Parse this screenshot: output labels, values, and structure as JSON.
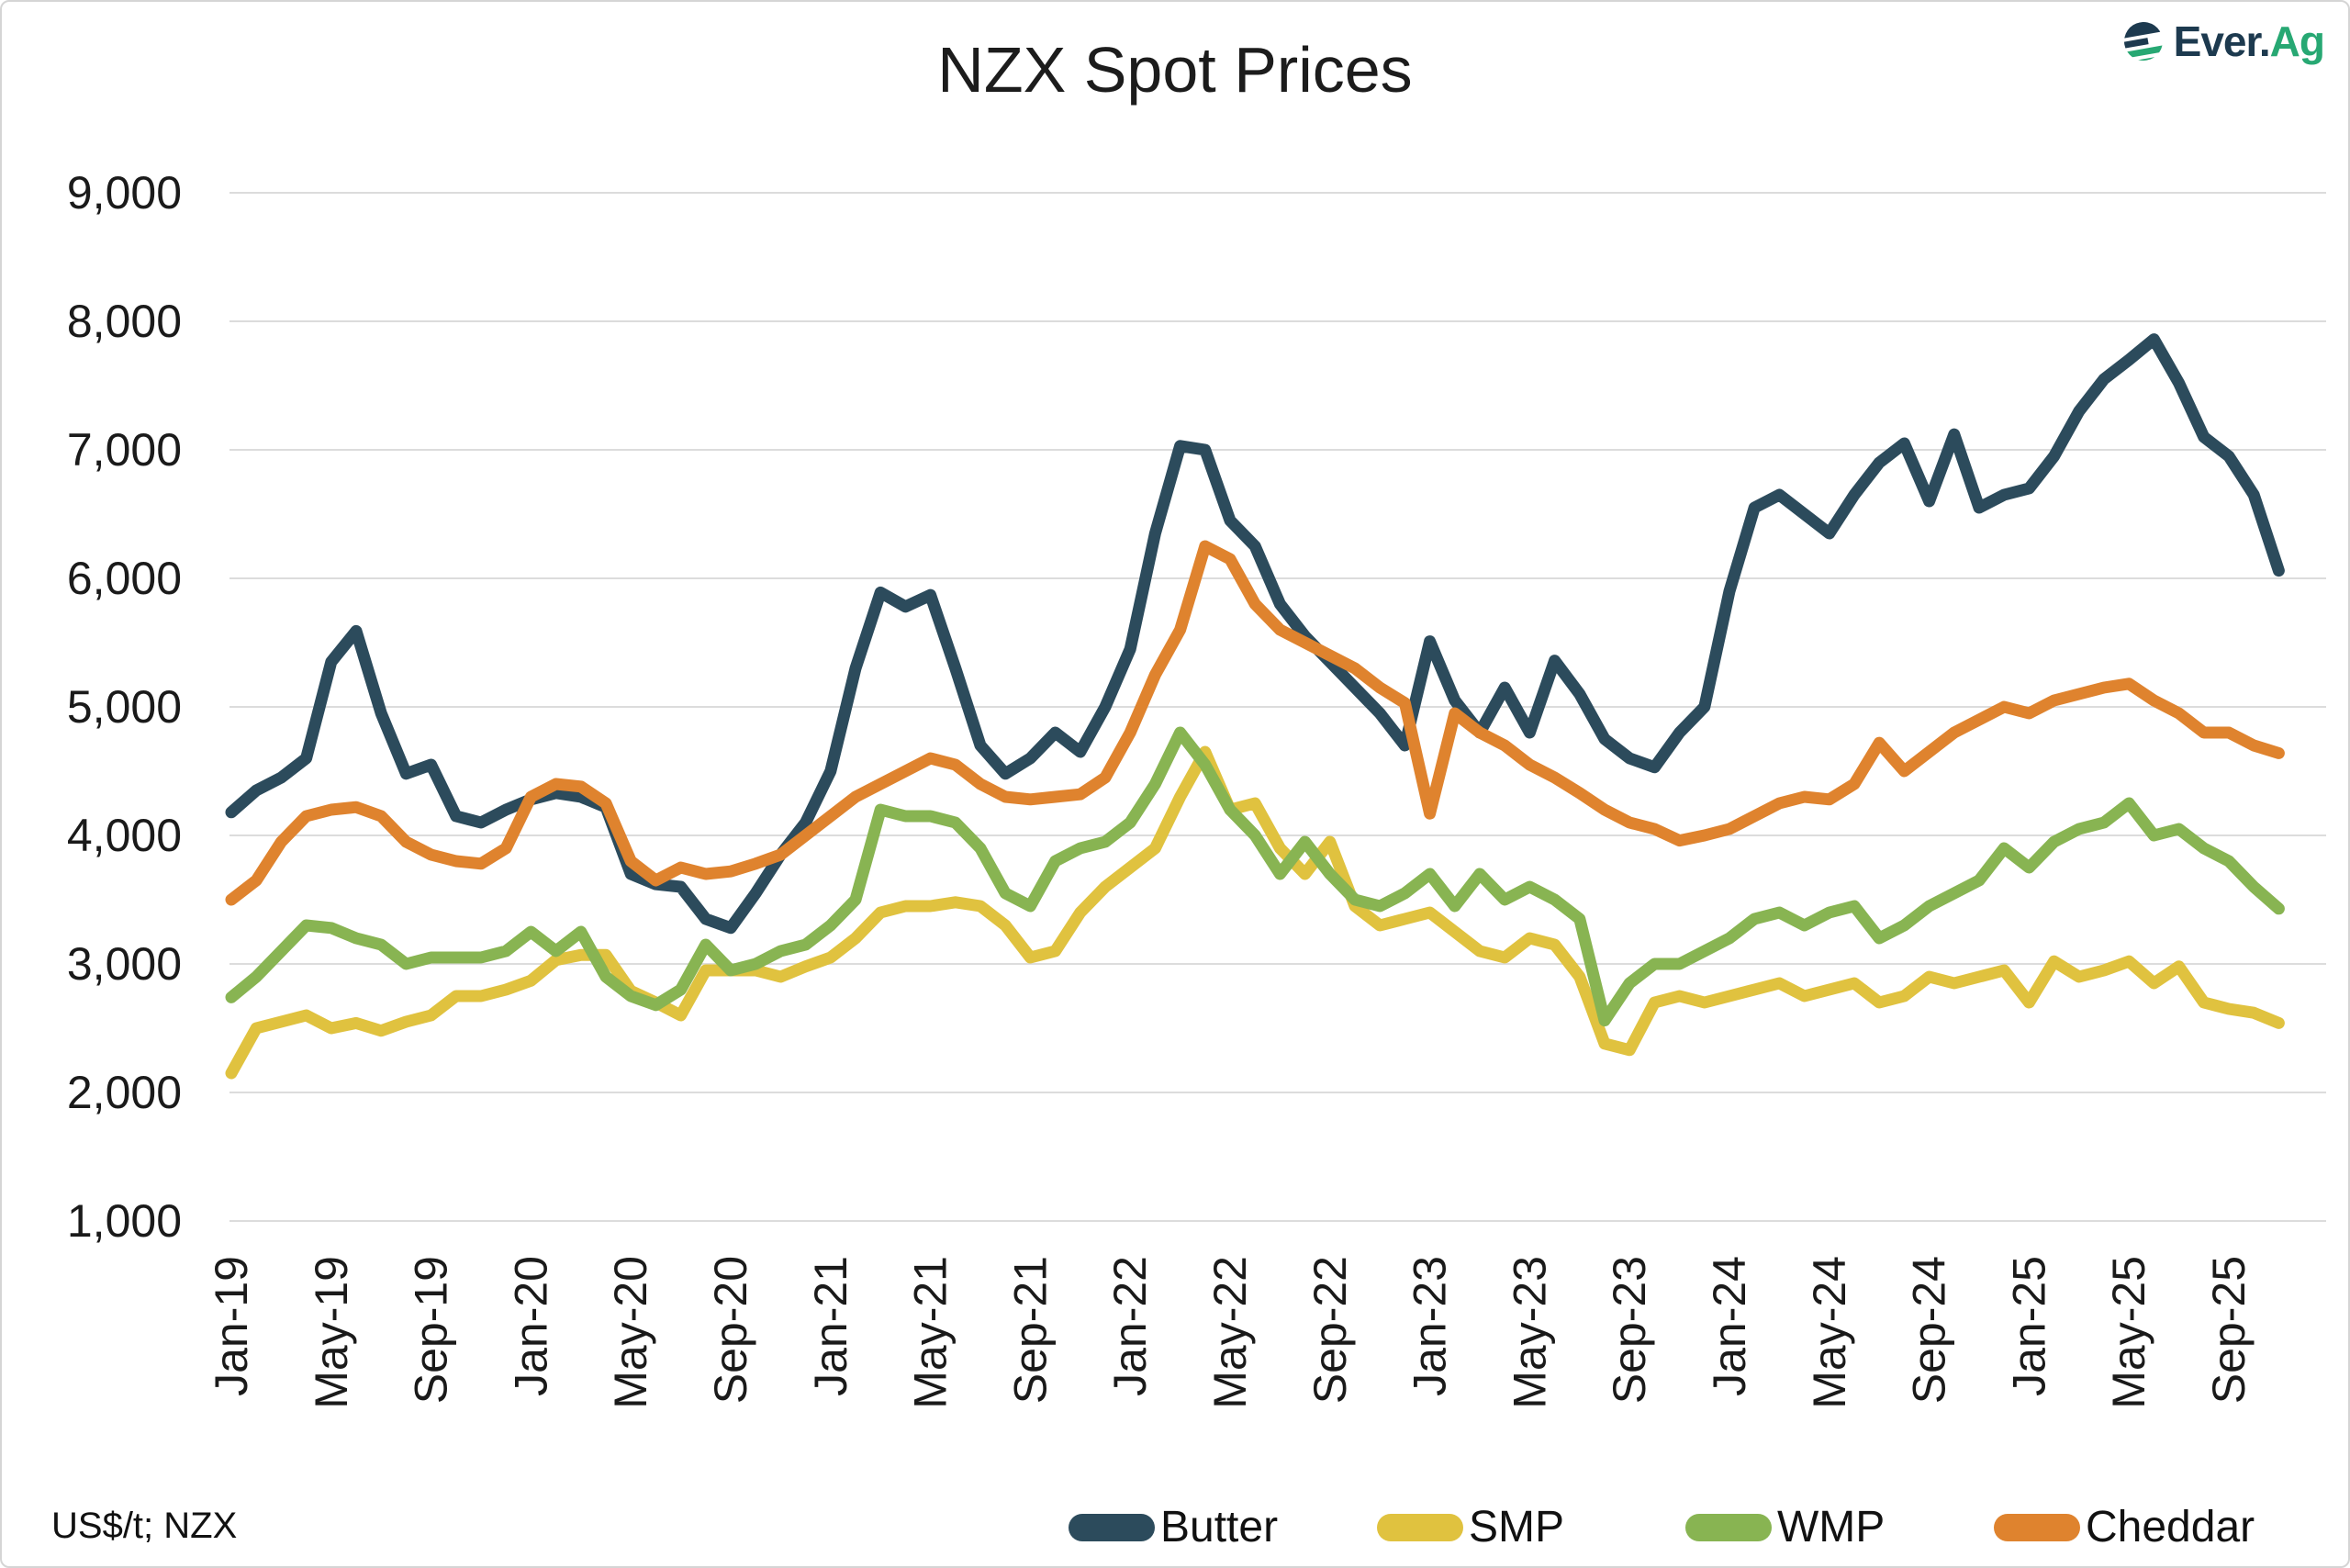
{
  "title": "NZX Spot Prices",
  "footer_note": "US$/t; NZX",
  "logo": {
    "brand_primary": "Ever.",
    "brand_accent": "Ag"
  },
  "colors": {
    "butter": "#2c4b5c",
    "smp": "#e0c23f",
    "wmp": "#88b452",
    "cheddar": "#df832e",
    "gridline": "#dcdcdc",
    "axis_text": "#1a1a1a",
    "logo_navy": "#1d3a4f",
    "logo_green": "#27a873"
  },
  "chart_data": {
    "type": "line",
    "title": "NZX Spot Prices",
    "unit_note": "US$/t; NZX",
    "grid": "horizontal",
    "legend_position": "bottom",
    "ylim": [
      1000,
      9000
    ],
    "y_ticks": [
      1000,
      2000,
      3000,
      4000,
      5000,
      6000,
      7000,
      8000,
      9000
    ],
    "y_tick_labels": [
      "1,000",
      "2,000",
      "3,000",
      "4,000",
      "5,000",
      "6,000",
      "7,000",
      "8,000",
      "9,000"
    ],
    "x_tick_labels": [
      "Jan-19",
      "May-19",
      "Sep-19",
      "Jan-20",
      "May-20",
      "Sep-20",
      "Jan-21",
      "May-21",
      "Sep-21",
      "Jan-22",
      "May-22",
      "Sep-22",
      "Jan-23",
      "May-23",
      "Sep-23",
      "Jan-24",
      "May-24",
      "Sep-24",
      "Jan-25",
      "May-25",
      "Sep-25"
    ],
    "x": [
      "Jan-19",
      "Feb-19",
      "Mar-19",
      "Apr-19",
      "May-19",
      "Jun-19",
      "Jul-19",
      "Aug-19",
      "Sep-19",
      "Oct-19",
      "Nov-19",
      "Dec-19",
      "Jan-20",
      "Feb-20",
      "Mar-20",
      "Apr-20",
      "May-20",
      "Jun-20",
      "Jul-20",
      "Aug-20",
      "Sep-20",
      "Oct-20",
      "Nov-20",
      "Dec-20",
      "Jan-21",
      "Feb-21",
      "Mar-21",
      "Apr-21",
      "May-21",
      "Jun-21",
      "Jul-21",
      "Aug-21",
      "Sep-21",
      "Oct-21",
      "Nov-21",
      "Dec-21",
      "Jan-22",
      "Feb-22",
      "Mar-22",
      "Apr-22",
      "May-22",
      "Jun-22",
      "Jul-22",
      "Aug-22",
      "Sep-22",
      "Oct-22",
      "Nov-22",
      "Dec-22",
      "Jan-23",
      "Feb-23",
      "Mar-23",
      "Apr-23",
      "May-23",
      "Jun-23",
      "Jul-23",
      "Aug-23",
      "Sep-23",
      "Oct-23",
      "Nov-23",
      "Dec-23",
      "Jan-24",
      "Feb-24",
      "Mar-24",
      "Apr-24",
      "May-24",
      "Jun-24",
      "Jul-24",
      "Aug-24",
      "Sep-24",
      "Oct-24",
      "Nov-24",
      "Dec-24",
      "Jan-25",
      "Feb-25",
      "Mar-25",
      "Apr-25",
      "May-25",
      "Jun-25",
      "Jul-25",
      "Aug-25",
      "Sep-25",
      "Oct-25",
      "Nov-25"
    ],
    "series": [
      {
        "name": "Butter",
        "color": "#2c4b5c",
        "values": [
          4180,
          4350,
          4450,
          4600,
          5350,
          5590,
          4950,
          4480,
          4550,
          4150,
          4100,
          4200,
          4280,
          4330,
          4300,
          4220,
          3700,
          3620,
          3600,
          3350,
          3280,
          3550,
          3850,
          4100,
          4500,
          5300,
          5890,
          5780,
          5870,
          5300,
          4700,
          4480,
          4600,
          4800,
          4650,
          5000,
          5450,
          6350,
          7030,
          7000,
          6450,
          6250,
          5800,
          5550,
          5350,
          5150,
          4950,
          4700,
          5510,
          5050,
          4800,
          5150,
          4800,
          5360,
          5100,
          4750,
          4600,
          4530,
          4800,
          5000,
          5900,
          6550,
          6650,
          6500,
          6350,
          6650,
          6900,
          7050,
          6600,
          7120,
          6550,
          6650,
          6700,
          6950,
          7300,
          7550,
          7700,
          7860,
          7520,
          7100,
          6950,
          6650,
          6060
        ]
      },
      {
        "name": "SMP",
        "color": "#e0c23f",
        "values": [
          2150,
          2500,
          2550,
          2600,
          2500,
          2540,
          2480,
          2550,
          2600,
          2750,
          2750,
          2800,
          2870,
          3030,
          3070,
          3070,
          2790,
          2700,
          2600,
          2950,
          2950,
          2950,
          2900,
          2980,
          3050,
          3200,
          3400,
          3450,
          3450,
          3480,
          3450,
          3300,
          3050,
          3100,
          3400,
          3600,
          3750,
          3900,
          4300,
          4650,
          4200,
          4250,
          3900,
          3700,
          3950,
          3450,
          3300,
          3350,
          3400,
          3250,
          3100,
          3050,
          3200,
          3150,
          2900,
          2380,
          2330,
          2700,
          2750,
          2700,
          2750,
          2800,
          2850,
          2750,
          2800,
          2850,
          2700,
          2750,
          2900,
          2850,
          2900,
          2950,
          2700,
          3020,
          2900,
          2950,
          3020,
          2850,
          2980,
          2700,
          2650,
          2620,
          2540
        ]
      },
      {
        "name": "WMP",
        "color": "#88b452",
        "values": [
          2740,
          2900,
          3100,
          3300,
          3280,
          3200,
          3150,
          3000,
          3050,
          3050,
          3050,
          3100,
          3250,
          3100,
          3250,
          2900,
          2750,
          2680,
          2800,
          3150,
          2950,
          3000,
          3100,
          3150,
          3300,
          3500,
          4200,
          4150,
          4150,
          4100,
          3900,
          3550,
          3450,
          3800,
          3900,
          3950,
          4100,
          4400,
          4800,
          4550,
          4200,
          4000,
          3700,
          3950,
          3700,
          3500,
          3450,
          3550,
          3700,
          3450,
          3700,
          3500,
          3600,
          3500,
          3350,
          2560,
          2850,
          3000,
          3000,
          3100,
          3200,
          3350,
          3400,
          3300,
          3400,
          3450,
          3200,
          3300,
          3450,
          3550,
          3650,
          3900,
          3750,
          3950,
          4050,
          4100,
          4250,
          4000,
          4050,
          3900,
          3800,
          3600,
          3430
        ]
      },
      {
        "name": "Cheddar",
        "color": "#df832e",
        "values": [
          3500,
          3650,
          3950,
          4150,
          4200,
          4220,
          4150,
          3950,
          3850,
          3800,
          3780,
          3900,
          4300,
          4400,
          4380,
          4250,
          3800,
          3650,
          3750,
          3700,
          3720,
          3780,
          3850,
          4000,
          4150,
          4300,
          4400,
          4500,
          4600,
          4550,
          4400,
          4300,
          4280,
          4300,
          4320,
          4450,
          4800,
          5250,
          5600,
          6250,
          6150,
          5800,
          5600,
          5500,
          5400,
          5300,
          5150,
          5030,
          4170,
          4950,
          4800,
          4700,
          4550,
          4450,
          4330,
          4200,
          4100,
          4050,
          3960,
          4000,
          4050,
          4150,
          4250,
          4300,
          4280,
          4400,
          4720,
          4500,
          4650,
          4800,
          4900,
          5000,
          4950,
          5050,
          5100,
          5150,
          5180,
          5050,
          4950,
          4800,
          4800,
          4700,
          4640
        ]
      }
    ]
  }
}
